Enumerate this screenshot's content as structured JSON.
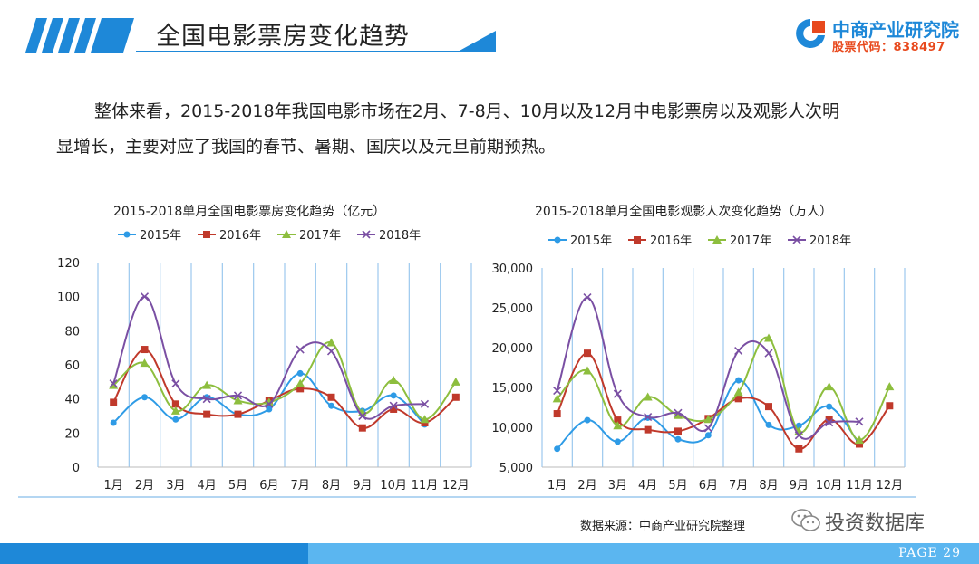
{
  "header": {
    "title": "全国电影票房变化趋势",
    "logo_name": "中商产业研究院",
    "logo_code": "股票代码：838497"
  },
  "body": {
    "line1": "整体来看，2015-2018年我国电影市场在2月、7-8月、10月以及12月中电影票房以及观影人次明",
    "line2": "显增长，主要对应了我国的春节、暑期、国庆以及元旦前期预热。"
  },
  "colors": {
    "accent": "#1E88D8",
    "series": [
      "#2E9BE6",
      "#C0392B",
      "#8DBE3E",
      "#7A4FA3"
    ]
  },
  "chart_data": [
    {
      "type": "line",
      "title": "2015-2018单月全国电影票房变化趋势（亿元）",
      "categories": [
        "1月",
        "2月",
        "3月",
        "4月",
        "5月",
        "6月",
        "7月",
        "8月",
        "9月",
        "10月",
        "11月",
        "12月"
      ],
      "ylim": [
        0,
        120
      ],
      "yticks": [
        "0",
        "20",
        "40",
        "60",
        "80",
        "100",
        "120"
      ],
      "grid": true,
      "legend": "top",
      "series": [
        {
          "name": "2015年",
          "values": [
            26,
            41,
            28,
            41,
            31,
            34,
            55,
            36,
            33,
            42,
            25,
            null
          ]
        },
        {
          "name": "2016年",
          "values": [
            38,
            69,
            37,
            31,
            31,
            39,
            46,
            41,
            23,
            34,
            26,
            41
          ]
        },
        {
          "name": "2017年",
          "values": [
            48,
            61,
            33,
            48,
            39,
            38,
            49,
            73,
            32,
            51,
            28,
            50
          ]
        },
        {
          "name": "2018年",
          "values": [
            49,
            100,
            49,
            40,
            42,
            37,
            69,
            68,
            30,
            36,
            37,
            null
          ]
        }
      ]
    },
    {
      "type": "line",
      "title": "2015-2018单月全国电影观影人次变化趋势（万人）",
      "categories": [
        "1月",
        "2月",
        "3月",
        "4月",
        "5月",
        "6月",
        "7月",
        "8月",
        "9月",
        "10月",
        "11月",
        "12月"
      ],
      "ylim": [
        5000,
        30000
      ],
      "yticks": [
        "5,000",
        "10,000",
        "15,000",
        "20,000",
        "25,000",
        "30,000"
      ],
      "grid": true,
      "legend": "top",
      "series": [
        {
          "name": "2015年",
          "values": [
            7300,
            10900,
            8200,
            11200,
            8500,
            9000,
            15900,
            10300,
            10200,
            12600,
            7900,
            null
          ]
        },
        {
          "name": "2016年",
          "values": [
            11700,
            19300,
            10900,
            9700,
            9500,
            11100,
            13600,
            12600,
            7300,
            11000,
            7900,
            12700
          ]
        },
        {
          "name": "2017年",
          "values": [
            13600,
            17100,
            10200,
            13800,
            11500,
            11000,
            14400,
            21200,
            9500,
            15100,
            8400,
            15100
          ]
        },
        {
          "name": "2018年",
          "values": [
            14600,
            26300,
            14200,
            11300,
            11800,
            9900,
            19600,
            19300,
            9000,
            10600,
            10700,
            null
          ]
        }
      ]
    }
  ],
  "source": "数据来源：中商产业研究院整理",
  "wechat": "投资数据库",
  "footer": {
    "page": "PAGE  29"
  }
}
